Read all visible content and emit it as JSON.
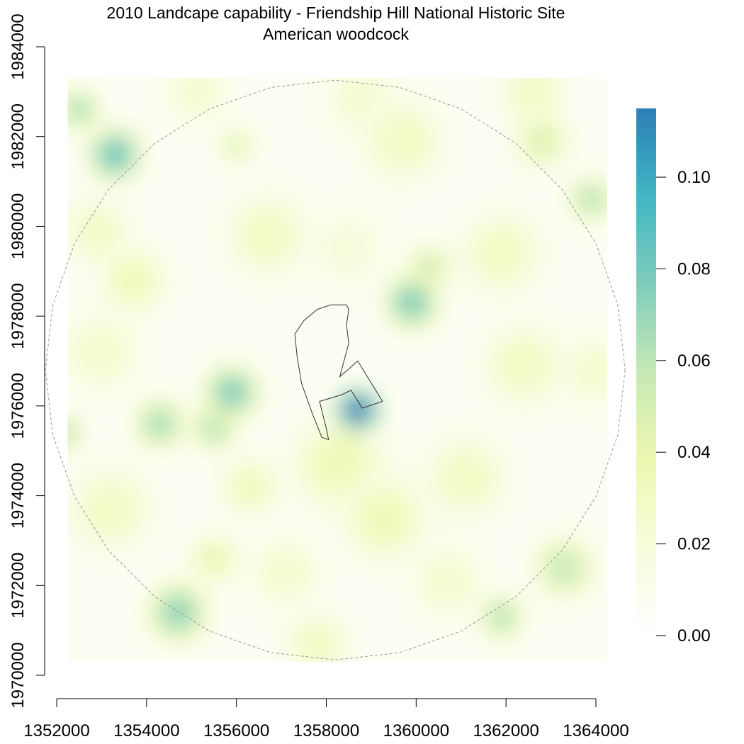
{
  "chart_data": {
    "type": "heatmap",
    "title": "2010 Landcape capability - Friendship Hill National Historic Site",
    "subtitle": "American woodcock",
    "xlim": [
      1352000,
      1364000
    ],
    "ylim": [
      1970000,
      1984000
    ],
    "raster_extent": {
      "x": [
        1352250,
        1364250
      ],
      "y": [
        1970300,
        1983300
      ]
    },
    "x_ticks": [
      {
        "value": 1352000,
        "label": "1352000"
      },
      {
        "value": 1354000,
        "label": "1354000"
      },
      {
        "value": 1356000,
        "label": "1356000"
      },
      {
        "value": 1358000,
        "label": "1358000"
      },
      {
        "value": 1360000,
        "label": "1360000"
      },
      {
        "value": 1362000,
        "label": "1362000"
      },
      {
        "value": 1364000,
        "label": "1364000"
      }
    ],
    "y_ticks": [
      {
        "value": 1970000,
        "label": "1970000"
      },
      {
        "value": 1972000,
        "label": "1972000"
      },
      {
        "value": 1974000,
        "label": "1974000"
      },
      {
        "value": 1976000,
        "label": "1976000"
      },
      {
        "value": 1978000,
        "label": "1978000"
      },
      {
        "value": 1980000,
        "label": "1980000"
      },
      {
        "value": 1982000,
        "label": "1982000"
      },
      {
        "value": 1984000,
        "label": "1984000"
      }
    ],
    "legend": {
      "range": [
        0,
        0.115
      ],
      "ticks": [
        {
          "value": 0.0,
          "label": "0.00"
        },
        {
          "value": 0.02,
          "label": "0.02"
        },
        {
          "value": 0.04,
          "label": "0.04"
        },
        {
          "value": 0.06,
          "label": "0.06"
        },
        {
          "value": 0.08,
          "label": "0.08"
        },
        {
          "value": 0.1,
          "label": "0.10"
        }
      ],
      "colors": [
        "#ffffff",
        "#f7fcdc",
        "#edf8b1",
        "#c7e9b4",
        "#7fcdbb",
        "#41b6c4",
        "#2c7fb8"
      ],
      "placement": "right"
    },
    "buffer_circle": {
      "center": [
        1358200,
        1976800
      ],
      "radius": 6450,
      "color": "#999999",
      "style": "dashed"
    },
    "park_boundary": {
      "color": "#333333",
      "points": [
        [
          1357800,
          1978150
        ],
        [
          1358100,
          1978250
        ],
        [
          1358450,
          1978250
        ],
        [
          1358500,
          1978150
        ],
        [
          1358450,
          1977800
        ],
        [
          1358500,
          1977400
        ],
        [
          1358300,
          1976650
        ],
        [
          1358700,
          1977000
        ],
        [
          1359250,
          1976100
        ],
        [
          1358800,
          1975950
        ],
        [
          1358550,
          1976350
        ],
        [
          1358350,
          1976250
        ],
        [
          1357850,
          1976100
        ],
        [
          1358000,
          1975500
        ],
        [
          1358050,
          1975250
        ],
        [
          1357900,
          1975300
        ],
        [
          1357700,
          1975800
        ],
        [
          1357450,
          1976500
        ],
        [
          1357350,
          1977100
        ],
        [
          1357300,
          1977600
        ],
        [
          1357500,
          1977900
        ],
        [
          1357800,
          1978150
        ]
      ]
    },
    "hotspots": [
      {
        "x": 1358700,
        "y": 1975900,
        "value": 0.115,
        "radius": 450
      },
      {
        "x": 1355900,
        "y": 1976300,
        "value": 0.075,
        "radius": 550
      },
      {
        "x": 1355500,
        "y": 1975500,
        "value": 0.06,
        "radius": 450
      },
      {
        "x": 1359900,
        "y": 1978300,
        "value": 0.075,
        "radius": 550
      },
      {
        "x": 1360300,
        "y": 1979100,
        "value": 0.05,
        "radius": 450
      },
      {
        "x": 1353300,
        "y": 1981600,
        "value": 0.08,
        "radius": 550
      },
      {
        "x": 1352500,
        "y": 1982600,
        "value": 0.065,
        "radius": 400
      },
      {
        "x": 1354300,
        "y": 1975600,
        "value": 0.065,
        "radius": 500
      },
      {
        "x": 1352200,
        "y": 1975400,
        "value": 0.06,
        "radius": 350
      },
      {
        "x": 1354700,
        "y": 1971400,
        "value": 0.07,
        "radius": 600
      },
      {
        "x": 1355500,
        "y": 1972600,
        "value": 0.04,
        "radius": 500
      },
      {
        "x": 1361900,
        "y": 1971300,
        "value": 0.06,
        "radius": 450
      },
      {
        "x": 1363300,
        "y": 1972400,
        "value": 0.055,
        "radius": 600
      },
      {
        "x": 1363900,
        "y": 1980600,
        "value": 0.06,
        "radius": 450
      },
      {
        "x": 1362800,
        "y": 1981900,
        "value": 0.045,
        "radius": 550
      },
      {
        "x": 1356000,
        "y": 1981800,
        "value": 0.045,
        "radius": 350
      },
      {
        "x": 1358300,
        "y": 1974700,
        "value": 0.035,
        "radius": 1000
      },
      {
        "x": 1359300,
        "y": 1973500,
        "value": 0.035,
        "radius": 900
      },
      {
        "x": 1356300,
        "y": 1974200,
        "value": 0.035,
        "radius": 600
      },
      {
        "x": 1353700,
        "y": 1978800,
        "value": 0.035,
        "radius": 700
      },
      {
        "x": 1352900,
        "y": 1979900,
        "value": 0.03,
        "radius": 700
      },
      {
        "x": 1356700,
        "y": 1979800,
        "value": 0.03,
        "radius": 900
      },
      {
        "x": 1359700,
        "y": 1981900,
        "value": 0.03,
        "radius": 900
      },
      {
        "x": 1361900,
        "y": 1979400,
        "value": 0.03,
        "radius": 900
      },
      {
        "x": 1362400,
        "y": 1976900,
        "value": 0.03,
        "radius": 900
      },
      {
        "x": 1361100,
        "y": 1974400,
        "value": 0.03,
        "radius": 900
      },
      {
        "x": 1353200,
        "y": 1973700,
        "value": 0.03,
        "radius": 900
      },
      {
        "x": 1353000,
        "y": 1977200,
        "value": 0.025,
        "radius": 900
      },
      {
        "x": 1357100,
        "y": 1972300,
        "value": 0.025,
        "radius": 800
      },
      {
        "x": 1360700,
        "y": 1972100,
        "value": 0.025,
        "radius": 800
      },
      {
        "x": 1357800,
        "y": 1970700,
        "value": 0.03,
        "radius": 700
      },
      {
        "x": 1358800,
        "y": 1982800,
        "value": 0.025,
        "radius": 800
      },
      {
        "x": 1355100,
        "y": 1983000,
        "value": 0.025,
        "radius": 700
      },
      {
        "x": 1362600,
        "y": 1983000,
        "value": 0.03,
        "radius": 700
      },
      {
        "x": 1364000,
        "y": 1976800,
        "value": 0.025,
        "radius": 800
      },
      {
        "x": 1358500,
        "y": 1979500,
        "value": 0.02,
        "radius": 900
      }
    ]
  }
}
